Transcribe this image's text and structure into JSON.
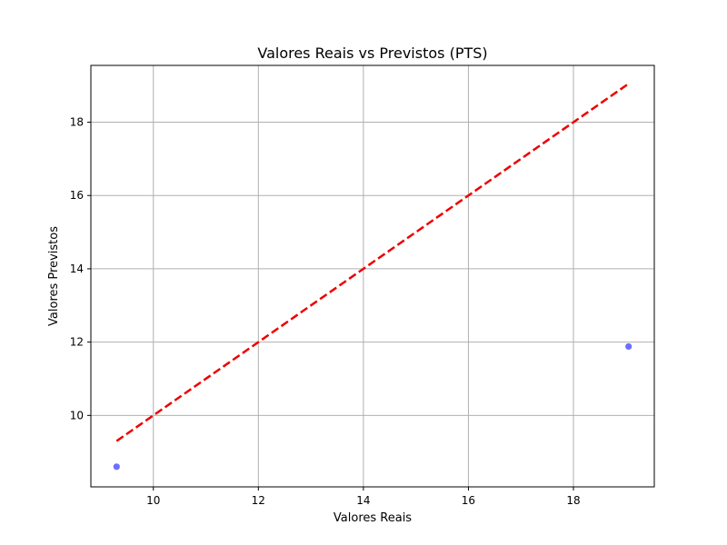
{
  "chart_data": {
    "type": "scatter",
    "title": "Valores Reais vs Previstos (PTS)",
    "xlabel": "Valores Reais",
    "ylabel": "Valores Previstos",
    "xlim": [
      8.81,
      19.54
    ],
    "ylim": [
      8.05,
      19.55
    ],
    "xticks": [
      10,
      12,
      14,
      16,
      18
    ],
    "yticks": [
      10,
      12,
      14,
      16,
      18
    ],
    "grid": true,
    "series": [
      {
        "kind": "points",
        "color": "#6666ff",
        "points": [
          {
            "x": 9.3,
            "y": 8.6
          },
          {
            "x": 19.05,
            "y": 11.88
          }
        ]
      },
      {
        "kind": "reference-line",
        "style": "dashed",
        "color": "#ee0000",
        "points": [
          {
            "x": 9.3,
            "y": 9.3
          },
          {
            "x": 19.05,
            "y": 19.05
          }
        ]
      }
    ]
  }
}
